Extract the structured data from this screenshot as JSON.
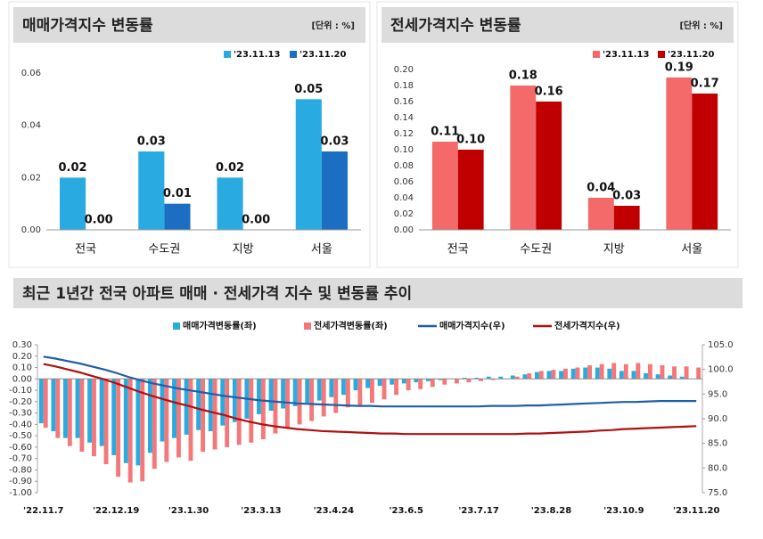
{
  "chart_data": [
    {
      "type": "bar",
      "title": "매매가격지수 변동률",
      "unit": "[단위 : %]",
      "categories": [
        "전국",
        "수도권",
        "지방",
        "서울"
      ],
      "series": [
        {
          "name": "'23.11.13",
          "color": "#29abe2",
          "values": [
            0.02,
            0.03,
            0.02,
            0.05
          ],
          "value_labels": [
            "0.02",
            "0.03",
            "0.02",
            "0.05"
          ]
        },
        {
          "name": "'23.11.20",
          "color": "#1b6ec2",
          "values": [
            0.0,
            0.01,
            0.0,
            0.03
          ],
          "value_labels": [
            "0.00",
            "0.01",
            "0.00",
            "0.03"
          ]
        }
      ],
      "ylim": [
        0,
        0.06
      ],
      "yticks": [
        {
          "value": 0,
          "label": "0.00"
        },
        0.02,
        0.04,
        0.06
      ],
      "grid": false,
      "legend": "top-right"
    },
    {
      "type": "bar",
      "title": "전세가격지수 변동률",
      "unit": "[단위 : %]",
      "categories": [
        "전국",
        "수도권",
        "지방",
        "서울"
      ],
      "series": [
        {
          "name": "'23.11.13",
          "color": "#f46a6a",
          "values": [
            0.11,
            0.18,
            0.04,
            0.19
          ],
          "value_labels": [
            "0.11",
            "0.18",
            "0.04",
            "0.19"
          ]
        },
        {
          "name": "'23.11.20",
          "color": "#c00000",
          "values": [
            0.1,
            0.16,
            0.03,
            0.17
          ],
          "value_labels": [
            "0.10",
            "0.16",
            "0.03",
            "0.17"
          ]
        }
      ],
      "ylim": [
        0,
        0.2
      ],
      "yticks": [
        {
          "value": 0,
          "label": "0.00"
        },
        0.02,
        0.04,
        0.06,
        0.08,
        {
          "value": 0.1,
          "label": "0.10"
        },
        0.12,
        0.14,
        0.16,
        0.18,
        {
          "value": 0.2,
          "label": "0.20"
        }
      ],
      "grid": false,
      "legend": "top-right"
    },
    {
      "type": "combo",
      "title": "최근 1년간 전국 아파트 매매 · 전세가격 지수 및 변동률 추이",
      "categories": [
        "'22.11.7",
        null,
        null,
        null,
        null,
        null,
        "'22.12.19",
        null,
        null,
        null,
        null,
        null,
        "'23.1.30",
        null,
        null,
        null,
        null,
        null,
        "'23.3.13",
        null,
        null,
        null,
        null,
        null,
        "'23.4.24",
        null,
        null,
        null,
        null,
        null,
        "'23.6.5",
        null,
        null,
        null,
        null,
        null,
        "'23.7.17",
        null,
        null,
        null,
        null,
        null,
        "'23.8.28",
        null,
        null,
        null,
        null,
        null,
        "'23.10.9",
        null,
        null,
        null,
        null,
        null,
        "'23.11.20"
      ],
      "series": [
        {
          "name": "매매가격변동률(좌)",
          "type": "bar",
          "color": "#29abe2",
          "values": [
            -0.39,
            -0.46,
            -0.52,
            -0.52,
            -0.56,
            -0.59,
            -0.67,
            -0.74,
            -0.76,
            -0.65,
            -0.55,
            -0.52,
            -0.49,
            -0.45,
            -0.46,
            -0.41,
            -0.38,
            -0.35,
            -0.31,
            -0.28,
            -0.26,
            -0.24,
            -0.21,
            -0.19,
            -0.16,
            -0.14,
            -0.1,
            -0.08,
            -0.06,
            -0.05,
            -0.04,
            -0.03,
            -0.02,
            -0.01,
            0.0,
            0.01,
            0.01,
            0.02,
            0.02,
            0.03,
            0.04,
            0.06,
            0.07,
            0.07,
            0.09,
            0.1,
            0.1,
            0.09,
            0.07,
            0.07,
            0.05,
            0.04,
            0.03,
            0.02,
            0.0
          ]
        },
        {
          "name": "전세가격변동률(좌)",
          "type": "bar",
          "color": "#f4777a",
          "values": [
            -0.43,
            -0.52,
            -0.59,
            -0.64,
            -0.68,
            -0.75,
            -0.86,
            -0.91,
            -0.9,
            -0.79,
            -0.73,
            -0.69,
            -0.72,
            -0.64,
            -0.62,
            -0.6,
            -0.58,
            -0.56,
            -0.53,
            -0.48,
            -0.43,
            -0.4,
            -0.37,
            -0.33,
            -0.3,
            -0.25,
            -0.23,
            -0.21,
            -0.18,
            -0.14,
            -0.1,
            -0.09,
            -0.07,
            -0.05,
            -0.04,
            -0.03,
            -0.02,
            -0.01,
            0.0,
            0.02,
            0.05,
            0.07,
            0.08,
            0.09,
            0.1,
            0.12,
            0.13,
            0.14,
            0.13,
            0.14,
            0.13,
            0.12,
            0.11,
            0.11,
            0.1
          ]
        },
        {
          "name": "매매가격지수(우)",
          "type": "line",
          "axis": "y2",
          "color": "#1f5fa8",
          "values": [
            102.6,
            102.2,
            101.7,
            101.2,
            100.6,
            100.0,
            99.3,
            98.5,
            97.8,
            97.2,
            96.7,
            96.2,
            95.8,
            95.4,
            95.0,
            94.6,
            94.3,
            94.0,
            93.7,
            93.5,
            93.3,
            93.1,
            93.0,
            92.9,
            92.8,
            92.7,
            92.6,
            92.6,
            92.5,
            92.5,
            92.5,
            92.5,
            92.5,
            92.5,
            92.5,
            92.5,
            92.5,
            92.6,
            92.6,
            92.6,
            92.7,
            92.7,
            92.8,
            92.9,
            93.0,
            93.1,
            93.2,
            93.3,
            93.4,
            93.4,
            93.5,
            93.6,
            93.6,
            93.6,
            93.6
          ]
        },
        {
          "name": "전세가격지수(우)",
          "type": "line",
          "axis": "y2",
          "color": "#b01010",
          "values": [
            101.1,
            100.6,
            100.0,
            99.4,
            98.7,
            98.0,
            97.2,
            96.3,
            95.4,
            94.6,
            93.9,
            93.2,
            92.6,
            91.9,
            91.3,
            90.7,
            90.0,
            89.4,
            88.9,
            88.5,
            88.2,
            87.9,
            87.7,
            87.5,
            87.4,
            87.3,
            87.2,
            87.1,
            87.0,
            87.0,
            86.9,
            86.9,
            86.9,
            86.9,
            86.9,
            86.9,
            86.9,
            86.9,
            86.9,
            86.9,
            87.0,
            87.0,
            87.1,
            87.2,
            87.3,
            87.4,
            87.6,
            87.7,
            87.9,
            88.0,
            88.1,
            88.2,
            88.3,
            88.4,
            88.5
          ]
        }
      ],
      "ylim": [
        -1.0,
        0.3
      ],
      "yticks": [
        {
          "value": -1.0,
          "label": "-1.00"
        },
        {
          "value": -0.9,
          "label": "-0.90"
        },
        {
          "value": -0.8,
          "label": "-0.80"
        },
        {
          "value": -0.7,
          "label": "-0.70"
        },
        {
          "value": -0.6,
          "label": "-0.60"
        },
        {
          "value": -0.5,
          "label": "-0.50"
        },
        {
          "value": -0.4,
          "label": "-0.40"
        },
        {
          "value": -0.3,
          "label": "-0.30"
        },
        {
          "value": -0.2,
          "label": "-0.20"
        },
        {
          "value": -0.1,
          "label": "-0.10"
        },
        {
          "value": 0,
          "label": "0.00"
        },
        {
          "value": 0.1,
          "label": "0.10"
        },
        {
          "value": 0.2,
          "label": "0.20"
        },
        {
          "value": 0.3,
          "label": "0.30"
        }
      ],
      "y2lim": [
        75,
        105
      ],
      "y2ticks": [
        {
          "value": 75,
          "label": "75.0"
        },
        {
          "value": 80,
          "label": "80.0"
        },
        {
          "value": 85,
          "label": "85.0"
        },
        {
          "value": 90,
          "label": "90.0"
        },
        {
          "value": 95,
          "label": "95.0"
        },
        {
          "value": 100,
          "label": "100.0"
        },
        {
          "value": 105,
          "label": "105.0"
        }
      ],
      "grid": false,
      "legend": "top"
    }
  ]
}
